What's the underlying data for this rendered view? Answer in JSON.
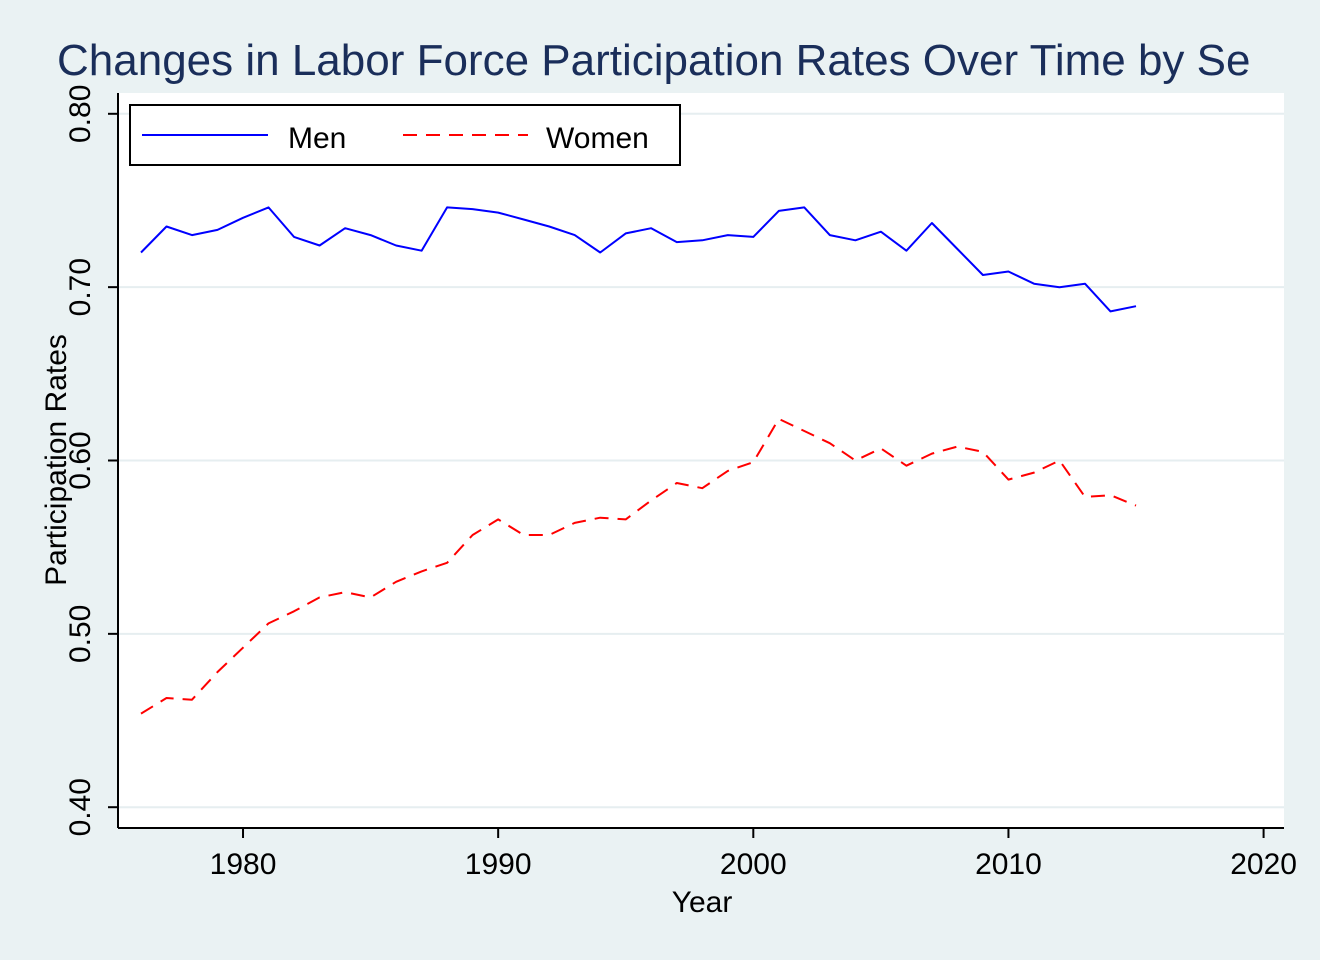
{
  "chart_data": {
    "type": "line",
    "title": "Changes in Labor Force Participation Rates Over Time by Se",
    "xlabel": "Year",
    "ylabel": "Participation Rates",
    "xlim": [
      1975.1,
      2020.8
    ],
    "ylim": [
      0.388,
      0.812
    ],
    "x_ticks": [
      1980,
      1990,
      2000,
      2010,
      2020
    ],
    "x_tick_labels": [
      "1980",
      "1990",
      "2000",
      "2010",
      "2020"
    ],
    "y_ticks": [
      0.4,
      0.5,
      0.6,
      0.7,
      0.8
    ],
    "y_tick_labels": [
      "0.40",
      "0.50",
      "0.60",
      "0.70",
      "0.80"
    ],
    "grid": "horizontal",
    "legend_position": "top-left",
    "colors": {
      "background": "#eaf2f3",
      "plot": "#ffffff",
      "men": "#0000ff",
      "women": "#ff0000",
      "grid": "#e6eef0",
      "title": "#1a2e5a"
    },
    "x": [
      1976,
      1977,
      1978,
      1979,
      1980,
      1981,
      1982,
      1983,
      1984,
      1985,
      1986,
      1987,
      1988,
      1989,
      1990,
      1991,
      1992,
      1993,
      1994,
      1995,
      1996,
      1997,
      1998,
      1999,
      2000,
      2001,
      2002,
      2003,
      2004,
      2005,
      2006,
      2007,
      2008,
      2009,
      2010,
      2011,
      2012,
      2013,
      2014,
      2015
    ],
    "series": [
      {
        "name": "Men",
        "style": "solid",
        "color": "#0000ff",
        "values": [
          0.72,
          0.735,
          0.73,
          0.733,
          0.74,
          0.746,
          0.729,
          0.724,
          0.734,
          0.73,
          0.724,
          0.721,
          0.746,
          0.745,
          0.743,
          0.739,
          0.735,
          0.73,
          0.72,
          0.731,
          0.734,
          0.726,
          0.727,
          0.73,
          0.729,
          0.744,
          0.746,
          0.73,
          0.727,
          0.732,
          0.721,
          0.737,
          0.722,
          0.707,
          0.709,
          0.702,
          0.7,
          0.702,
          0.686,
          0.689
        ]
      },
      {
        "name": "Women",
        "style": "dashed",
        "color": "#ff0000",
        "values": [
          0.454,
          0.463,
          0.462,
          0.478,
          0.492,
          0.506,
          0.513,
          0.521,
          0.524,
          0.521,
          0.53,
          0.536,
          0.541,
          0.557,
          0.566,
          0.557,
          0.557,
          0.564,
          0.567,
          0.566,
          0.577,
          0.587,
          0.584,
          0.594,
          0.599,
          0.624,
          0.617,
          0.61,
          0.6,
          0.607,
          0.597,
          0.604,
          0.608,
          0.605,
          0.589,
          0.593,
          0.6,
          0.579,
          0.58,
          0.574
        ]
      }
    ]
  }
}
